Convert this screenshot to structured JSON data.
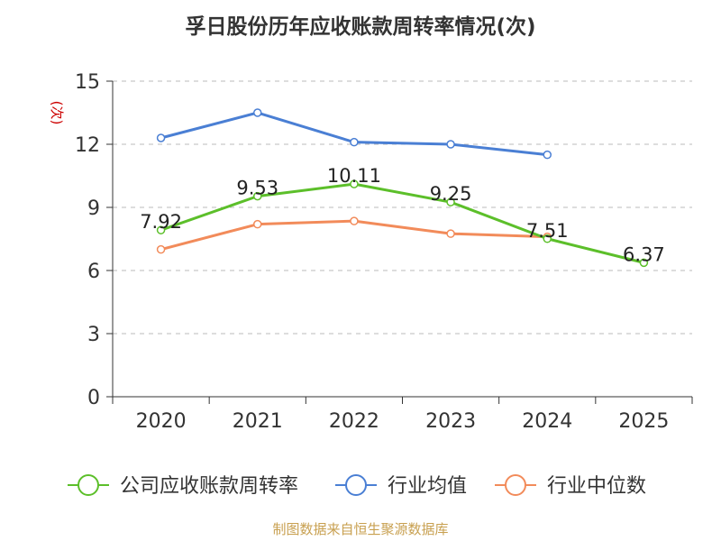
{
  "chart_data": {
    "type": "line",
    "title": "孚日股份历年应收账款周转率情况(次)",
    "unit_label": "(次)",
    "categories": [
      "2020",
      "2021",
      "2022",
      "2023",
      "2024",
      "2025"
    ],
    "y_ticks": [
      "0",
      "3",
      "6",
      "9",
      "12",
      "15"
    ],
    "ylim": [
      0,
      15
    ],
    "grid": true,
    "legend_position": "bottom",
    "series": [
      {
        "name": "公司应收账款周转率",
        "color": "#5cbf2a",
        "values": [
          7.92,
          9.53,
          10.11,
          9.25,
          7.51,
          6.37
        ],
        "labels": [
          "7.92",
          "9.53",
          "10.11",
          "9.25",
          "7.51",
          "6.37"
        ]
      },
      {
        "name": "行业均值",
        "color": "#4a7fd4",
        "values": [
          12.3,
          13.5,
          12.1,
          12.0,
          11.5,
          null
        ]
      },
      {
        "name": "行业中位数",
        "color": "#f28b5a",
        "values": [
          7.0,
          8.2,
          8.35,
          7.75,
          7.6,
          null
        ]
      }
    ],
    "source": "制图数据来自恒生聚源数据库"
  }
}
